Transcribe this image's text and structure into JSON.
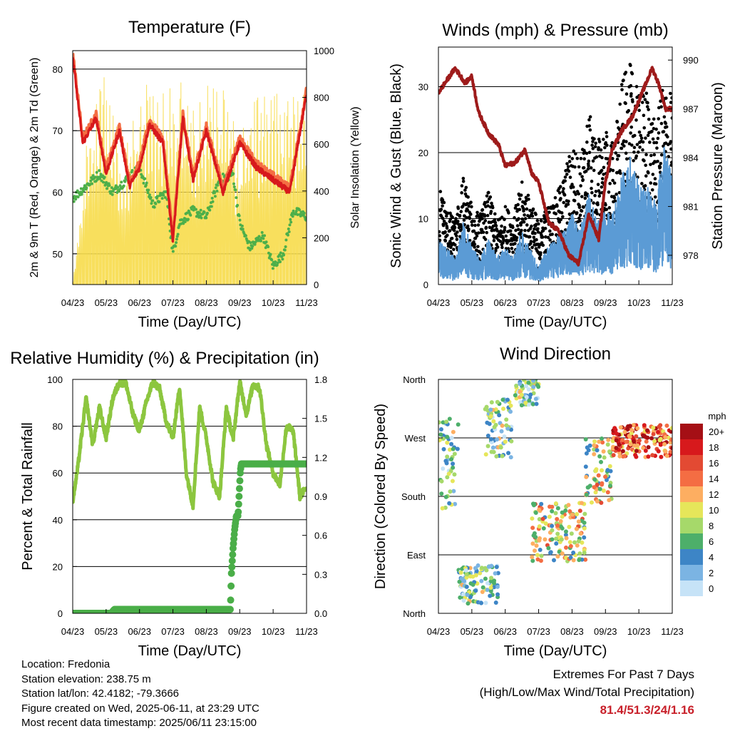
{
  "colors": {
    "temp_2m": "#d7191c",
    "temp_9m": "#f46d43",
    "dewpoint": "#4daf4a",
    "solar": "#f7dc4b",
    "gust": "#000000",
    "wind": "#5b9bd5",
    "pressure": "#9e1b1b",
    "rh": "#8cc63f",
    "precip": "#4aae48"
  },
  "chart_data": [
    {
      "type": "line",
      "title": "Temperature (F)",
      "xlabel": "Time (Day/UTC)",
      "ylabel": "2m & 9m T (Red, Orange) & 2m Td (Green)",
      "y2label": "Solar Insolation (Yellow)",
      "x_ticks": [
        "04/23",
        "05/23",
        "06/23",
        "07/23",
        "08/23",
        "09/23",
        "10/23",
        "11/23"
      ],
      "ylim": [
        45,
        83
      ],
      "y_ticks": [
        50,
        60,
        70,
        80
      ],
      "y2lim": [
        0,
        1000
      ],
      "y2_ticks": [
        0,
        200,
        400,
        600,
        800,
        1000
      ],
      "grid": true,
      "series": [
        {
          "role": "temp",
          "x": [
            0,
            0.3,
            0.7,
            1,
            1.4,
            1.7,
            2,
            2.3,
            2.7,
            3,
            3.3,
            3.6,
            4,
            4.5,
            5,
            5.5,
            6,
            6.5,
            7
          ],
          "values": [
            82,
            68,
            72,
            63,
            70,
            61,
            64,
            71,
            68,
            52,
            72,
            62,
            70,
            60,
            68,
            64,
            62,
            60,
            76
          ]
        },
        {
          "role": "dewpoint",
          "x": [
            0,
            0.4,
            0.8,
            1.2,
            1.6,
            2,
            2.4,
            2.8,
            3,
            3.2,
            3.6,
            4,
            4.4,
            4.8,
            5,
            5.3,
            5.7,
            6,
            6.3,
            6.6,
            7
          ],
          "values": [
            59,
            61,
            63,
            60,
            62,
            64,
            58,
            60,
            50,
            55,
            57,
            56,
            62,
            63,
            55,
            51,
            53,
            48,
            50,
            57,
            56
          ]
        },
        {
          "role": "solar",
          "x": [
            0,
            0.5,
            1,
            1.5,
            2,
            2.5,
            3,
            3.5,
            4,
            4.5,
            5,
            5.5,
            6,
            6.5,
            7
          ],
          "values": [
            0,
            800,
            950,
            600,
            960,
            900,
            880,
            950,
            920,
            940,
            700,
            880,
            850,
            950,
            900
          ]
        }
      ]
    },
    {
      "type": "line",
      "title": "Winds (mph) & Pressure (mb)",
      "xlabel": "Time (Day/UTC)",
      "ylabel": "Sonic Wind & Gust (Blue, Black)",
      "y2label": "Station Pressure (Maroon)",
      "x_ticks": [
        "04/23",
        "05/23",
        "06/23",
        "07/23",
        "08/23",
        "09/23",
        "10/23",
        "11/23"
      ],
      "ylim": [
        0,
        36
      ],
      "y_ticks": [
        0,
        10,
        20,
        30
      ],
      "y2lim": [
        976.2,
        990.8
      ],
      "y2_ticks": [
        978,
        981,
        984,
        987,
        990
      ],
      "grid": true,
      "series": [
        {
          "role": "pressure",
          "x": [
            0,
            0.2,
            0.5,
            0.8,
            1,
            1.2,
            1.5,
            1.8,
            2,
            2.3,
            2.6,
            2.8,
            3,
            3.3,
            3.6,
            3.9,
            4.2,
            4.5,
            4.8,
            5,
            5.2,
            5.5,
            5.8,
            6,
            6.2,
            6.4,
            6.6,
            6.8,
            7
          ],
          "values": [
            988,
            988.6,
            989.5,
            988.6,
            989,
            986.8,
            985.5,
            984.8,
            983.5,
            983.7,
            984.5,
            983,
            982.5,
            980,
            979.5,
            978,
            977.5,
            980.5,
            979,
            982.5,
            984.5,
            985.7,
            986.5,
            987.5,
            988.5,
            989.5,
            988.5,
            987,
            987
          ]
        },
        {
          "role": "gust",
          "x": [
            0,
            0.25,
            0.5,
            0.75,
            1,
            1.25,
            1.5,
            1.75,
            2,
            2.25,
            2.5,
            2.75,
            3,
            3.25,
            3.5,
            3.75,
            4,
            4.25,
            4.5,
            4.75,
            5,
            5.25,
            5.5,
            5.75,
            6,
            6.25,
            6.5,
            6.75,
            7
          ],
          "values": [
            13,
            10,
            8,
            14,
            10,
            9,
            12,
            8,
            10,
            9,
            13,
            11,
            8,
            10,
            11,
            14,
            18,
            16,
            22,
            18,
            20,
            18,
            26,
            28,
            24,
            25,
            20,
            26,
            24
          ]
        },
        {
          "role": "wind",
          "x": [
            0,
            0.25,
            0.5,
            0.75,
            1,
            1.25,
            1.5,
            1.75,
            2,
            2.25,
            2.5,
            2.75,
            3,
            3.25,
            3.5,
            3.75,
            4,
            4.25,
            4.5,
            4.75,
            5,
            5.25,
            5.5,
            5.75,
            6,
            6.25,
            6.5,
            6.75,
            7
          ],
          "values": [
            5,
            4,
            3,
            7,
            4,
            3,
            5,
            3,
            4,
            3,
            6,
            4,
            2,
            4,
            5,
            6,
            8,
            6,
            10,
            7,
            8,
            8,
            12,
            14,
            11,
            11,
            9,
            15,
            12
          ]
        }
      ]
    },
    {
      "type": "line",
      "title": "Relative Humidity (%) & Precipitation (in)",
      "xlabel": "Time (Day/UTC)",
      "ylabel": "Percent & Total Rainfall",
      "x_ticks": [
        "04/23",
        "05/23",
        "06/23",
        "07/23",
        "08/23",
        "09/23",
        "10/23",
        "11/23"
      ],
      "ylim": [
        0,
        100
      ],
      "y_ticks": [
        0,
        20,
        40,
        60,
        80,
        100
      ],
      "y2lim": [
        0,
        1.8
      ],
      "y2_ticks": [
        "0.0",
        "0.3",
        "0.6",
        "0.9",
        "1.2",
        "1.5",
        "1.8"
      ],
      "grid": true,
      "series": [
        {
          "role": "rh",
          "x": [
            0,
            0.15,
            0.4,
            0.6,
            0.8,
            1,
            1.2,
            1.4,
            1.6,
            1.8,
            2,
            2.2,
            2.4,
            2.6,
            2.8,
            3,
            3.2,
            3.4,
            3.6,
            3.8,
            4,
            4.2,
            4.4,
            4.6,
            4.8,
            5,
            5.2,
            5.4,
            5.6,
            5.8,
            6,
            6.2,
            6.4,
            6.6,
            6.8,
            7
          ],
          "values": [
            48,
            62,
            92,
            72,
            88,
            75,
            92,
            99,
            98,
            85,
            78,
            90,
            99,
            96,
            82,
            75,
            97,
            60,
            46,
            88,
            75,
            56,
            50,
            88,
            74,
            99,
            85,
            98,
            96,
            72,
            60,
            55,
            80,
            78,
            50,
            54
          ]
        },
        {
          "role": "precip",
          "x": [
            0,
            1.15,
            1.25,
            1.5,
            2,
            3,
            4,
            4.72,
            4.75,
            4.8,
            4.85,
            4.9,
            4.95,
            5,
            5.02,
            5.05,
            5.1,
            5.5,
            6,
            6.5,
            7
          ],
          "values": [
            0,
            0,
            0.03,
            0.03,
            0.03,
            0.03,
            0.03,
            0.03,
            0.3,
            0.5,
            0.65,
            0.75,
            0.75,
            1.0,
            1.1,
            1.15,
            1.15,
            1.15,
            1.15,
            1.15,
            1.15
          ]
        }
      ]
    },
    {
      "type": "scatter",
      "title": "Wind Direction",
      "xlabel": "Time (Day/UTC)",
      "ylabel": "Direction (Colored By Speed)",
      "x_ticks": [
        "04/23",
        "05/23",
        "06/23",
        "07/23",
        "08/23",
        "09/23",
        "10/23",
        "11/23"
      ],
      "y_ticks": [
        "North",
        "East",
        "South",
        "West",
        "North"
      ],
      "legend": {
        "title": "mph",
        "labels": [
          "20+",
          "18",
          "16",
          "14",
          "12",
          "10",
          "8",
          "6",
          "4",
          "2",
          "0"
        ],
        "colors": [
          "#a50f15",
          "#d7191c",
          "#e34a33",
          "#f46d43",
          "#fdae61",
          "#e6e65a",
          "#a6d96a",
          "#4daf6a",
          "#3d85c6",
          "#7bb4e3",
          "#c6e3f7"
        ],
        "placement": "right"
      },
      "grid": true,
      "clusters": [
        {
          "x": [
            0.6,
            1.8
          ],
          "dir": [
            15,
            75
          ]
        },
        {
          "x": [
            0,
            0.6
          ],
          "dir": [
            160,
            300
          ]
        },
        {
          "x": [
            1.4,
            2.2
          ],
          "dir": [
            240,
            330
          ]
        },
        {
          "x": [
            2.3,
            3.0
          ],
          "dir": [
            320,
            360
          ]
        },
        {
          "x": [
            2.8,
            4.4
          ],
          "dir": [
            80,
            170
          ]
        },
        {
          "x": [
            4.4,
            5.2
          ],
          "dir": [
            170,
            270
          ]
        },
        {
          "x": [
            5.2,
            7
          ],
          "dir": [
            240,
            290
          ]
        }
      ]
    }
  ],
  "info": {
    "location": "Location: Fredonia",
    "elevation": "Station elevation: 238.75 m",
    "latlon": "Station lat/lon: 42.4182; -79.3666",
    "created": "Figure created on Wed, 2025-06-11, at 23:29 UTC",
    "recent": "Most recent data timestamp: 2025/06/11 23:15:00"
  },
  "extremes": {
    "title": "Extremes For Past 7 Days",
    "subtitle": "(High/Low/Max Wind/Total Precipitation)",
    "values": "81.4/51.3/24/1.16"
  }
}
